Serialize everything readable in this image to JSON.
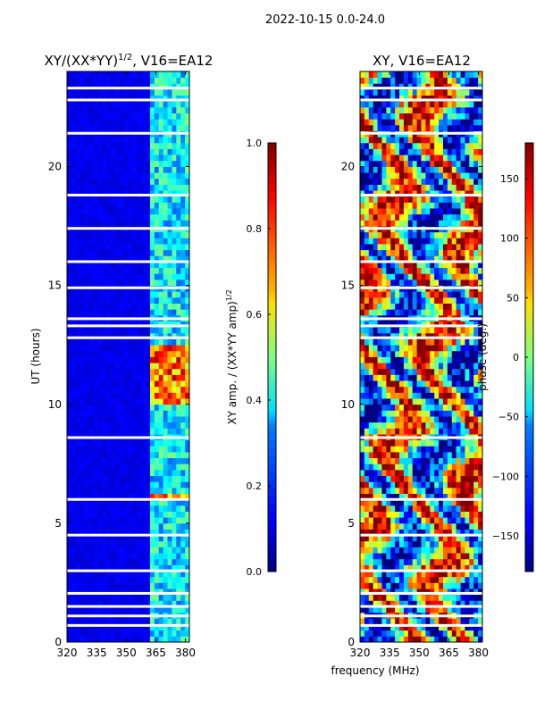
{
  "figure": {
    "suptitle": "2022-10-15 0.0-24.0",
    "xlabel": "frequency (MHz)"
  },
  "chart_data": [
    {
      "type": "heatmap",
      "title": "XY/(XX*YY)",
      "title_sup": "1/2",
      "title_tail": ", V16=EA12",
      "ylabel": "UT (hours)",
      "xlim": [
        320,
        382
      ],
      "ylim": [
        0,
        24
      ],
      "xticks": [
        "320",
        "335",
        "350",
        "365",
        "380"
      ],
      "xtick_values": [
        320,
        335,
        350,
        365,
        380
      ],
      "yticks": [
        "0",
        "5",
        "10",
        "15",
        "20"
      ],
      "ytick_values": [
        0,
        5,
        10,
        15,
        20
      ],
      "colorbar": {
        "label": "XY amp. / (XX*YY amp)",
        "label_sup": "1/2",
        "range": [
          0.0,
          1.0
        ],
        "ticks": [
          "0.0",
          "0.2",
          "0.4",
          "0.6",
          "0.8",
          "1.0"
        ],
        "tick_values": [
          0.0,
          0.2,
          0.4,
          0.6,
          0.8,
          1.0
        ],
        "colormap": "jet"
      },
      "high_band_mhz": [
        362,
        382
      ],
      "flagged_ut_hours": [
        0.7,
        1.1,
        1.5,
        2.05,
        3.0,
        4.5,
        6.0,
        8.6,
        12.8,
        13.3,
        13.6,
        14.9,
        16.0,
        17.4,
        18.8,
        21.4,
        22.8,
        23.3
      ]
    },
    {
      "type": "heatmap",
      "title": "XY, V16=EA12",
      "ylabel": "",
      "xlim": [
        320,
        382
      ],
      "ylim": [
        0,
        24
      ],
      "xticks": [
        "320",
        "335",
        "350",
        "365",
        "380"
      ],
      "xtick_values": [
        320,
        335,
        350,
        365,
        380
      ],
      "yticks": [
        "0",
        "5",
        "10",
        "15",
        "20"
      ],
      "ytick_values": [
        0,
        5,
        10,
        15,
        20
      ],
      "colorbar": {
        "label": "phase (deg.)",
        "range": [
          -180,
          180
        ],
        "ticks": [
          "−150",
          "−100",
          "−50",
          "0",
          "50",
          "100",
          "150"
        ],
        "tick_values": [
          -150,
          -100,
          -50,
          0,
          50,
          100,
          150
        ],
        "colormap": "jet"
      },
      "flagged_ut_hours": [
        0.7,
        1.1,
        1.5,
        2.05,
        3.0,
        4.5,
        6.0,
        8.6,
        12.8,
        13.3,
        13.6,
        14.9,
        16.0,
        17.4,
        18.8,
        21.4,
        22.8,
        23.3
      ]
    }
  ]
}
